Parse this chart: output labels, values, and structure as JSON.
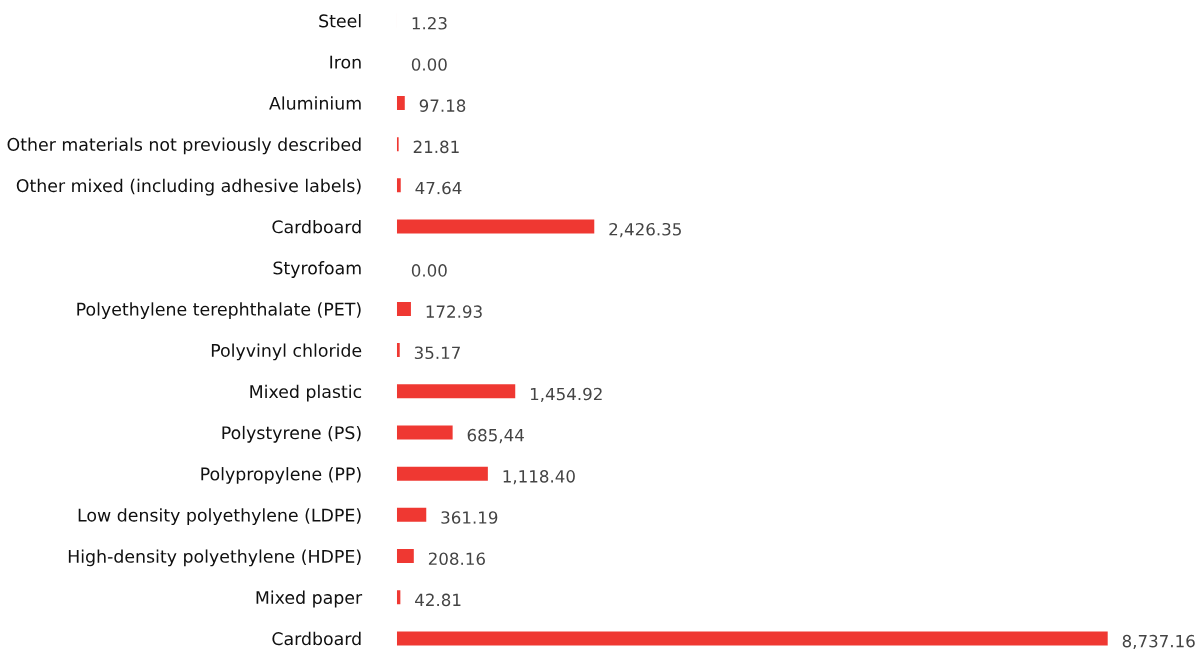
{
  "chart_data": {
    "type": "bar",
    "orientation": "horizontal",
    "color": "#ef3832",
    "categories": [
      "Steel",
      "Iron",
      "Aluminium",
      "Other materials not previously described",
      "Other mixed (including adhesive labels)",
      "Cardboard",
      "Styrofoam",
      "Polyethylene terephthalate (PET)",
      "Polyvinyl chloride",
      "Mixed plastic",
      "Polystyrene (PS)",
      "Polypropylene (PP)",
      "Low density polyethylene (LDPE)",
      "High-density polyethylene (HDPE)",
      "Mixed paper",
      "Cardboard"
    ],
    "values": [
      1.23,
      0.0,
      97.18,
      21.81,
      47.64,
      2426.35,
      0.0,
      172.93,
      35.17,
      1454.92,
      685.44,
      1118.4,
      361.19,
      208.16,
      42.81,
      8737.16
    ],
    "value_labels": [
      "1.23",
      "0.00",
      "97.18",
      "21.81",
      "47.64",
      "2,426.35",
      "0.00",
      "172.93",
      "35.17",
      "1,454.92",
      "685,44",
      "1,118.40",
      "361.19",
      "208.16",
      "42.81",
      "8,737.16"
    ],
    "grid": false,
    "legend": false,
    "tick_labels": "y"
  }
}
